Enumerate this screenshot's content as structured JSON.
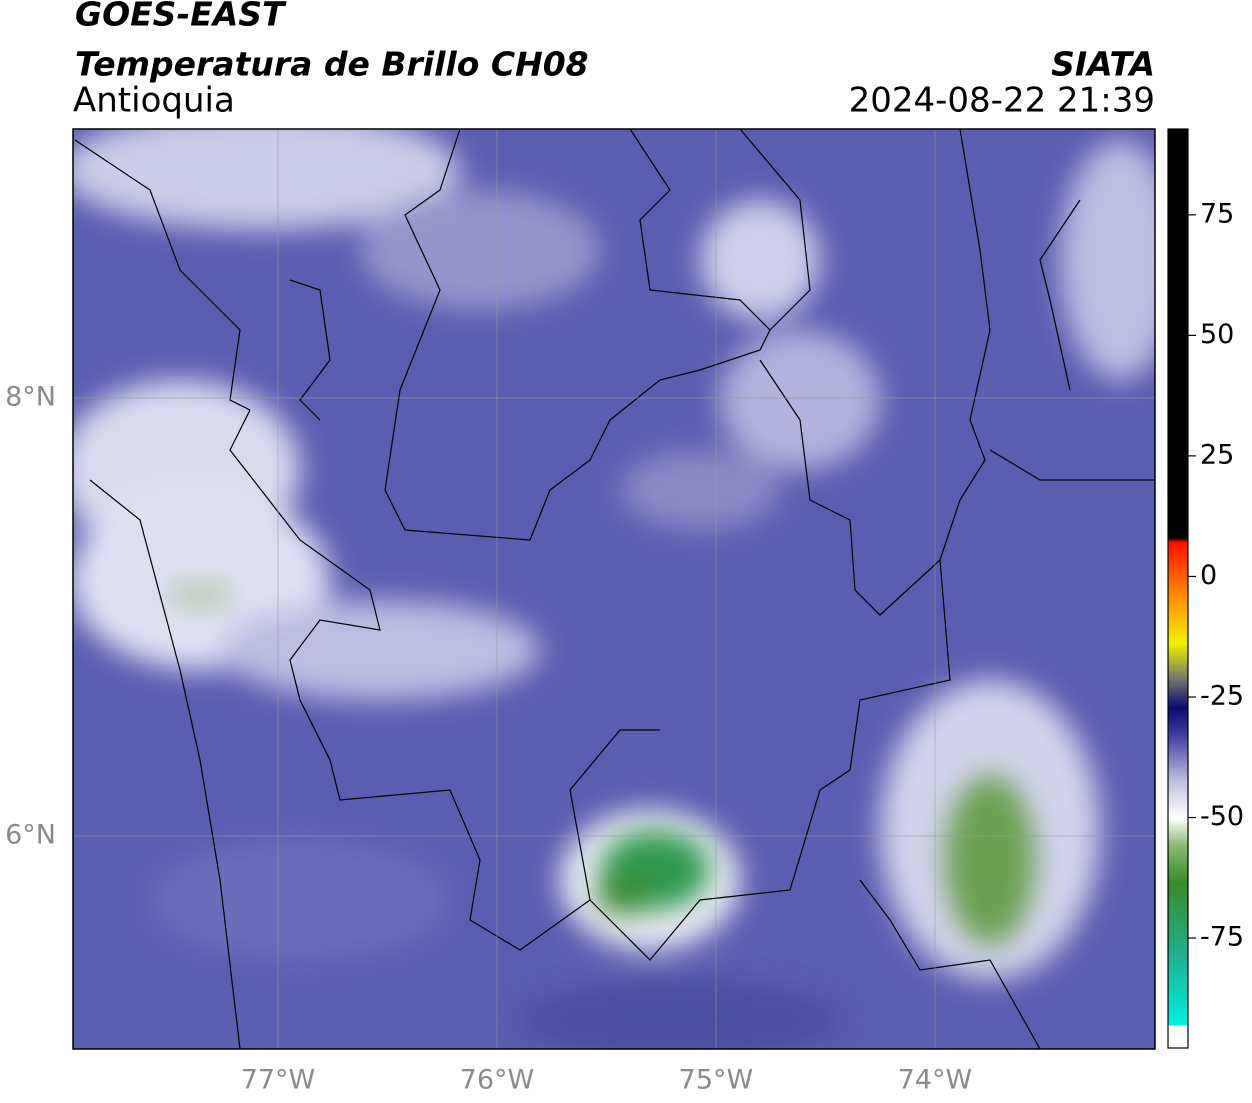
{
  "header": {
    "title": "GOES-EAST",
    "subtitle": "Temperatura de Brillo CH08",
    "region": "Antioquia",
    "source": "SIATA",
    "datetime": "2024-08-22 21:39"
  },
  "map": {
    "lonlim": [
      -77.936,
      -72.995
    ],
    "latlim": [
      5.027,
      9.228
    ],
    "lon_ticks": [
      {
        "value": -77,
        "label": "77°W"
      },
      {
        "value": -76,
        "label": "76°W"
      },
      {
        "value": -75,
        "label": "75°W"
      },
      {
        "value": -74,
        "label": "74°W"
      }
    ],
    "lat_ticks": [
      {
        "value": 8,
        "label": "8°N"
      },
      {
        "value": 6,
        "label": "6°N"
      }
    ]
  },
  "colorbar": {
    "lim": [
      -97.8,
      92.8
    ],
    "ticks": [
      75,
      50,
      25,
      0,
      -25,
      -50,
      -75
    ]
  }
}
